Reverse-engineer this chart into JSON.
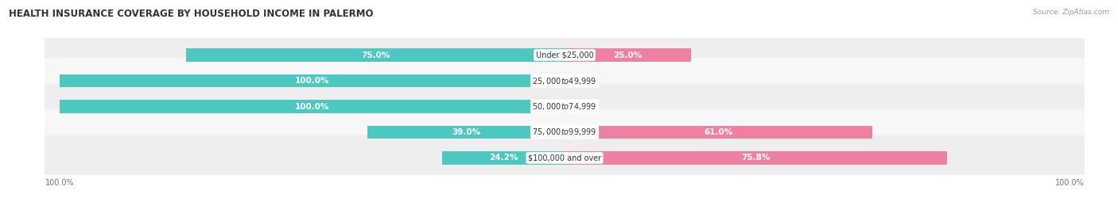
{
  "title": "HEALTH INSURANCE COVERAGE BY HOUSEHOLD INCOME IN PALERMO",
  "source": "Source: ZipAtlas.com",
  "categories": [
    "Under $25,000",
    "$25,000 to $49,999",
    "$50,000 to $74,999",
    "$75,000 to $99,999",
    "$100,000 and over"
  ],
  "with_coverage": [
    75.0,
    100.0,
    100.0,
    39.0,
    24.2
  ],
  "without_coverage": [
    25.0,
    0.0,
    0.0,
    61.0,
    75.8
  ],
  "color_with": "#4DC8C0",
  "color_without": "#F080A0",
  "row_bg_odd": "#EEEEEE",
  "row_bg_even": "#F7F7F7",
  "figsize": [
    14.06,
    2.69
  ],
  "dpi": 100,
  "title_fontsize": 8.5,
  "bar_label_fontsize": 7.5,
  "cat_label_fontsize": 7.0,
  "axis_tick_fontsize": 7.0,
  "legend_fontsize": 7.5
}
